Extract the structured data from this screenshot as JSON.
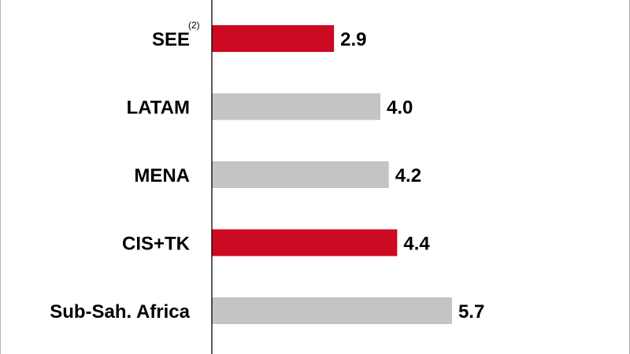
{
  "chart_data": {
    "type": "bar",
    "orientation": "horizontal",
    "categories": [
      "SEE",
      "LATAM",
      "MENA",
      "CIS+TK",
      "Sub-Sah. Africa"
    ],
    "category_superscripts": [
      "(2)",
      "",
      "",
      "",
      ""
    ],
    "values": [
      2.9,
      4.0,
      4.2,
      4.4,
      5.7
    ],
    "value_labels": [
      "2.9",
      "4.0",
      "4.2",
      "4.4",
      "5.7"
    ],
    "bar_colors": [
      "#cc0a22",
      "#c4c4c4",
      "#c4c4c4",
      "#cc0a22",
      "#c4c4c4"
    ],
    "xlim": [
      0,
      10
    ],
    "grid": false,
    "legend": "none"
  }
}
